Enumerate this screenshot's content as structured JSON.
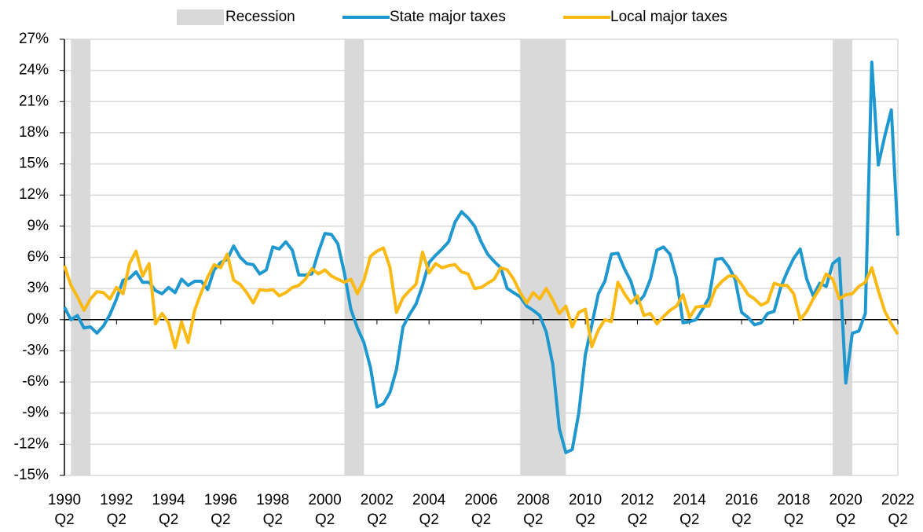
{
  "chart_data": {
    "type": "line",
    "x": [
      1990.25,
      1990.5,
      1990.75,
      1991,
      1991.25,
      1991.5,
      1991.75,
      1992,
      1992.25,
      1992.5,
      1992.75,
      1993,
      1993.25,
      1993.5,
      1993.75,
      1994,
      1994.25,
      1994.5,
      1994.75,
      1995,
      1995.25,
      1995.5,
      1995.75,
      1996,
      1996.25,
      1996.5,
      1996.75,
      1997,
      1997.25,
      1997.5,
      1997.75,
      1998,
      1998.25,
      1998.5,
      1998.75,
      1999,
      1999.25,
      1999.5,
      1999.75,
      2000,
      2000.25,
      2000.5,
      2000.75,
      2001,
      2001.25,
      2001.5,
      2001.75,
      2002,
      2002.25,
      2002.5,
      2002.75,
      2003,
      2003.25,
      2003.5,
      2003.75,
      2004,
      2004.25,
      2004.5,
      2004.75,
      2005,
      2005.25,
      2005.5,
      2005.75,
      2006,
      2006.25,
      2006.5,
      2006.75,
      2007,
      2007.25,
      2007.5,
      2007.75,
      2008,
      2008.25,
      2008.5,
      2008.75,
      2009,
      2009.25,
      2009.5,
      2009.75,
      2010,
      2010.25,
      2010.5,
      2010.75,
      2011,
      2011.25,
      2011.5,
      2011.75,
      2012,
      2012.25,
      2012.5,
      2012.75,
      2013,
      2013.25,
      2013.5,
      2013.75,
      2014,
      2014.25,
      2014.5,
      2014.75,
      2015,
      2015.25,
      2015.5,
      2015.75,
      2016,
      2016.25,
      2016.5,
      2016.75,
      2017,
      2017.25,
      2017.5,
      2017.75,
      2018,
      2018.25,
      2018.5,
      2018.75,
      2019,
      2019.25,
      2019.5,
      2019.75,
      2020,
      2020.25,
      2020.5,
      2020.75,
      2021,
      2021.25,
      2021.5,
      2021.75,
      2022,
      2022.25
    ],
    "series": [
      {
        "name": "State major taxes",
        "color": "#1f98d0",
        "values": [
          1.2,
          0.0,
          0.4,
          -0.8,
          -0.7,
          -1.3,
          -0.6,
          0.5,
          2.0,
          3.8,
          4.0,
          4.6,
          3.6,
          3.6,
          2.8,
          2.5,
          3.1,
          2.6,
          3.9,
          3.3,
          3.7,
          3.7,
          2.9,
          4.8,
          5.5,
          5.8,
          7.1,
          6.0,
          5.4,
          5.3,
          4.4,
          4.8,
          7.0,
          6.8,
          7.5,
          6.7,
          4.3,
          4.3,
          4.4,
          6.5,
          8.3,
          8.2,
          7.3,
          4.5,
          1.0,
          -0.8,
          -2.2,
          -4.6,
          -8.4,
          -8.1,
          -7.0,
          -4.8,
          -0.7,
          0.5,
          1.5,
          3.3,
          5.5,
          6.2,
          6.8,
          7.5,
          9.4,
          10.4,
          9.8,
          9.0,
          7.5,
          6.3,
          5.6,
          5.0,
          3.0,
          2.6,
          2.2,
          1.3,
          0.9,
          0.4,
          -1.2,
          -4.3,
          -10.5,
          -12.8,
          -12.5,
          -9.0,
          -3.4,
          -0.5,
          2.5,
          3.7,
          6.3,
          6.4,
          4.9,
          3.7,
          1.6,
          2.3,
          3.9,
          6.7,
          7.0,
          6.3,
          4.0,
          -0.3,
          -0.2,
          0.0,
          1.0,
          2.1,
          5.8,
          5.9,
          5.1,
          3.9,
          0.7,
          0.2,
          -0.5,
          -0.3,
          0.6,
          0.8,
          3.1,
          4.6,
          5.9,
          6.8,
          3.9,
          2.3,
          3.5,
          3.2,
          5.4,
          5.9,
          -6.1,
          -1.3,
          -1.1,
          0.6,
          24.8,
          14.9,
          17.7,
          20.2,
          8.1
        ]
      },
      {
        "name": "Local major taxes",
        "color": "#fbb914",
        "values": [
          5.2,
          3.3,
          2.2,
          0.9,
          2.0,
          2.7,
          2.6,
          2.0,
          3.1,
          2.5,
          5.4,
          6.6,
          4.2,
          5.4,
          -0.4,
          0.6,
          -0.3,
          -2.7,
          -0.2,
          -2.2,
          0.9,
          2.6,
          4.1,
          5.3,
          5.0,
          6.3,
          3.8,
          3.4,
          2.6,
          1.6,
          2.9,
          2.8,
          2.9,
          2.3,
          2.6,
          3.1,
          3.3,
          3.9,
          4.9,
          4.4,
          4.8,
          4.2,
          3.9,
          3.6,
          3.9,
          2.5,
          3.8,
          6.1,
          6.6,
          6.9,
          5.0,
          0.7,
          2.1,
          2.8,
          3.4,
          6.5,
          4.5,
          5.4,
          5.0,
          5.2,
          5.3,
          4.6,
          4.4,
          3.0,
          3.1,
          3.5,
          3.9,
          5.0,
          4.8,
          3.9,
          2.6,
          1.6,
          2.6,
          2.0,
          3.0,
          1.9,
          0.6,
          1.3,
          -0.7,
          0.7,
          1.0,
          -2.6,
          -1.0,
          0.0,
          -0.2,
          3.6,
          2.5,
          1.6,
          2.3,
          0.4,
          0.6,
          -0.4,
          0.3,
          0.9,
          1.3,
          2.4,
          0.2,
          1.2,
          1.3,
          1.3,
          3.0,
          3.7,
          4.2,
          4.2,
          3.4,
          2.4,
          2.0,
          1.4,
          1.7,
          3.5,
          3.3,
          3.3,
          2.5,
          0.0,
          0.8,
          2.0,
          3.0,
          4.4,
          3.9,
          2.0,
          2.4,
          2.5,
          3.2,
          3.6,
          5.0,
          2.8,
          0.8,
          -0.4,
          -1.4
        ]
      }
    ],
    "recessions": {
      "name": "Recession",
      "color": "#d9d9d9",
      "periods": [
        [
          1990.5,
          1991.25
        ],
        [
          2001.0,
          2001.75
        ],
        [
          2007.75,
          2009.5
        ],
        [
          2019.75,
          2020.5
        ]
      ]
    },
    "xlim": [
      1990.25,
      2022.25
    ],
    "xticks": [
      {
        "value": 1990.25,
        "label": "1990\nQ2"
      },
      {
        "value": 1992.25,
        "label": "1992\nQ2"
      },
      {
        "value": 1994.25,
        "label": "1994\nQ2"
      },
      {
        "value": 1996.25,
        "label": "1996\nQ2"
      },
      {
        "value": 1998.25,
        "label": "1998\nQ2"
      },
      {
        "value": 2000.25,
        "label": "2000\nQ2"
      },
      {
        "value": 2002.25,
        "label": "2002\nQ2"
      },
      {
        "value": 2004.25,
        "label": "2004\nQ2"
      },
      {
        "value": 2006.25,
        "label": "2006\nQ2"
      },
      {
        "value": 2008.25,
        "label": "2008\nQ2"
      },
      {
        "value": 2010.25,
        "label": "2010\nQ2"
      },
      {
        "value": 2012.25,
        "label": "2012\nQ2"
      },
      {
        "value": 2014.25,
        "label": "2014\nQ2"
      },
      {
        "value": 2016.25,
        "label": "2016\nQ2"
      },
      {
        "value": 2018.25,
        "label": "2018\nQ2"
      },
      {
        "value": 2020.25,
        "label": "2020\nQ2"
      },
      {
        "value": 2022.25,
        "label": "2022\nQ2"
      }
    ],
    "ylim": [
      -15,
      27
    ],
    "yticks": [
      {
        "value": -15,
        "label": "-15%"
      },
      {
        "value": -12,
        "label": "-12%"
      },
      {
        "value": -9,
        "label": "-9%"
      },
      {
        "value": -6,
        "label": "-6%"
      },
      {
        "value": -3,
        "label": "-3%"
      },
      {
        "value": 0,
        "label": "0%"
      },
      {
        "value": 3,
        "label": "3%"
      },
      {
        "value": 6,
        "label": "6%"
      },
      {
        "value": 9,
        "label": "9%"
      },
      {
        "value": 12,
        "label": "12%"
      },
      {
        "value": 15,
        "label": "15%"
      },
      {
        "value": 18,
        "label": "18%"
      },
      {
        "value": 21,
        "label": "21%"
      },
      {
        "value": 24,
        "label": "24%"
      },
      {
        "value": 27,
        "label": "27%"
      }
    ],
    "grid": true,
    "legend": "top"
  }
}
